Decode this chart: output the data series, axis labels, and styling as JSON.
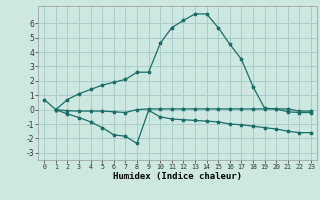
{
  "xlabel": "Humidex (Indice chaleur)",
  "bg_color": "#cce8e0",
  "grid_color": "#aacccc",
  "line_color": "#1a6e6a",
  "xlim": [
    -0.5,
    23.5
  ],
  "ylim": [
    -3.5,
    7.2
  ],
  "yticks": [
    -3,
    -2,
    -1,
    0,
    1,
    2,
    3,
    4,
    5,
    6
  ],
  "xticks": [
    0,
    1,
    2,
    3,
    4,
    5,
    6,
    7,
    8,
    9,
    10,
    11,
    12,
    13,
    14,
    15,
    16,
    17,
    18,
    19,
    20,
    21,
    22,
    23
  ],
  "line1_x": [
    0,
    1,
    2,
    3,
    4,
    5,
    6,
    7,
    8,
    9,
    10,
    11,
    12,
    13,
    14,
    15,
    16,
    17,
    18,
    19,
    20,
    21,
    22,
    23
  ],
  "line1_y": [
    0.7,
    0.0,
    0.7,
    1.1,
    1.4,
    1.7,
    1.9,
    2.1,
    2.6,
    2.6,
    4.6,
    5.7,
    6.2,
    6.65,
    6.65,
    5.7,
    4.55,
    3.5,
    1.6,
    0.1,
    0.05,
    -0.15,
    -0.2,
    -0.2
  ],
  "line2_x": [
    1,
    2,
    3,
    4,
    5,
    6,
    7,
    8,
    9,
    10,
    11,
    12,
    13,
    14,
    15,
    16,
    17,
    18,
    19,
    20,
    21,
    22,
    23
  ],
  "line2_y": [
    0.0,
    -0.3,
    -0.55,
    -0.85,
    -1.25,
    -1.75,
    -1.85,
    -2.35,
    -0.05,
    -0.5,
    -0.65,
    -0.7,
    -0.75,
    -0.8,
    -0.85,
    -1.0,
    -1.05,
    -1.15,
    -1.25,
    -1.35,
    -1.5,
    -1.6,
    -1.6
  ],
  "line3_x": [
    1,
    2,
    3,
    4,
    5,
    6,
    7,
    8,
    9,
    10,
    11,
    12,
    13,
    14,
    15,
    16,
    17,
    18,
    19,
    20,
    21,
    22,
    23
  ],
  "line3_y": [
    0.0,
    -0.08,
    -0.1,
    -0.1,
    -0.1,
    -0.15,
    -0.2,
    0.0,
    0.05,
    0.05,
    0.05,
    0.05,
    0.05,
    0.05,
    0.05,
    0.05,
    0.05,
    0.05,
    0.05,
    0.05,
    0.05,
    -0.1,
    -0.1
  ]
}
